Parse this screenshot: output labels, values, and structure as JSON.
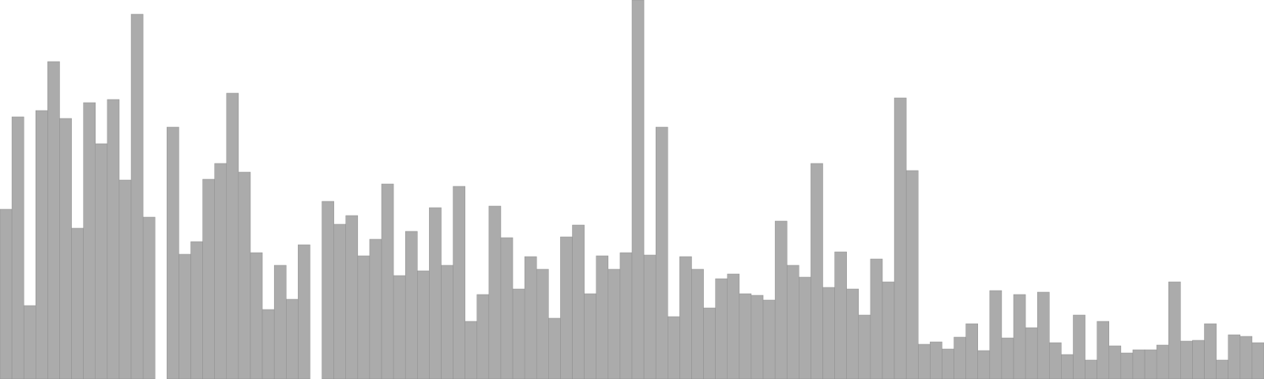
{
  "chart_data": {
    "type": "bar",
    "title": "",
    "xlabel": "",
    "ylabel": "",
    "ylim": [
      0,
      480
    ],
    "grid": false,
    "legend": "none",
    "bar_color": "#ababab",
    "edge_color": "#8f8f8f",
    "background": "#ffffff",
    "values": [
      215,
      332,
      93,
      340,
      402,
      330,
      191,
      350,
      298,
      354,
      252,
      462,
      205,
      0,
      319,
      158,
      174,
      253,
      273,
      362,
      262,
      160,
      88,
      144,
      101,
      170,
      0,
      225,
      196,
      207,
      156,
      177,
      247,
      131,
      187,
      137,
      217,
      144,
      244,
      73,
      107,
      219,
      179,
      114,
      155,
      139,
      77,
      180,
      195,
      108,
      156,
      139,
      160,
      480,
      157,
      319,
      79,
      155,
      139,
      90,
      127,
      133,
      108,
      106,
      100,
      200,
      144,
      129,
      273,
      116,
      161,
      114,
      81,
      152,
      123,
      356,
      264,
      44,
      47,
      38,
      53,
      70,
      36,
      112,
      52,
      107,
      65,
      110,
      46,
      31,
      81,
      24,
      73,
      42,
      33,
      37,
      37,
      43,
      123,
      48,
      49,
      70,
      24,
      56,
      54,
      46
    ]
  }
}
